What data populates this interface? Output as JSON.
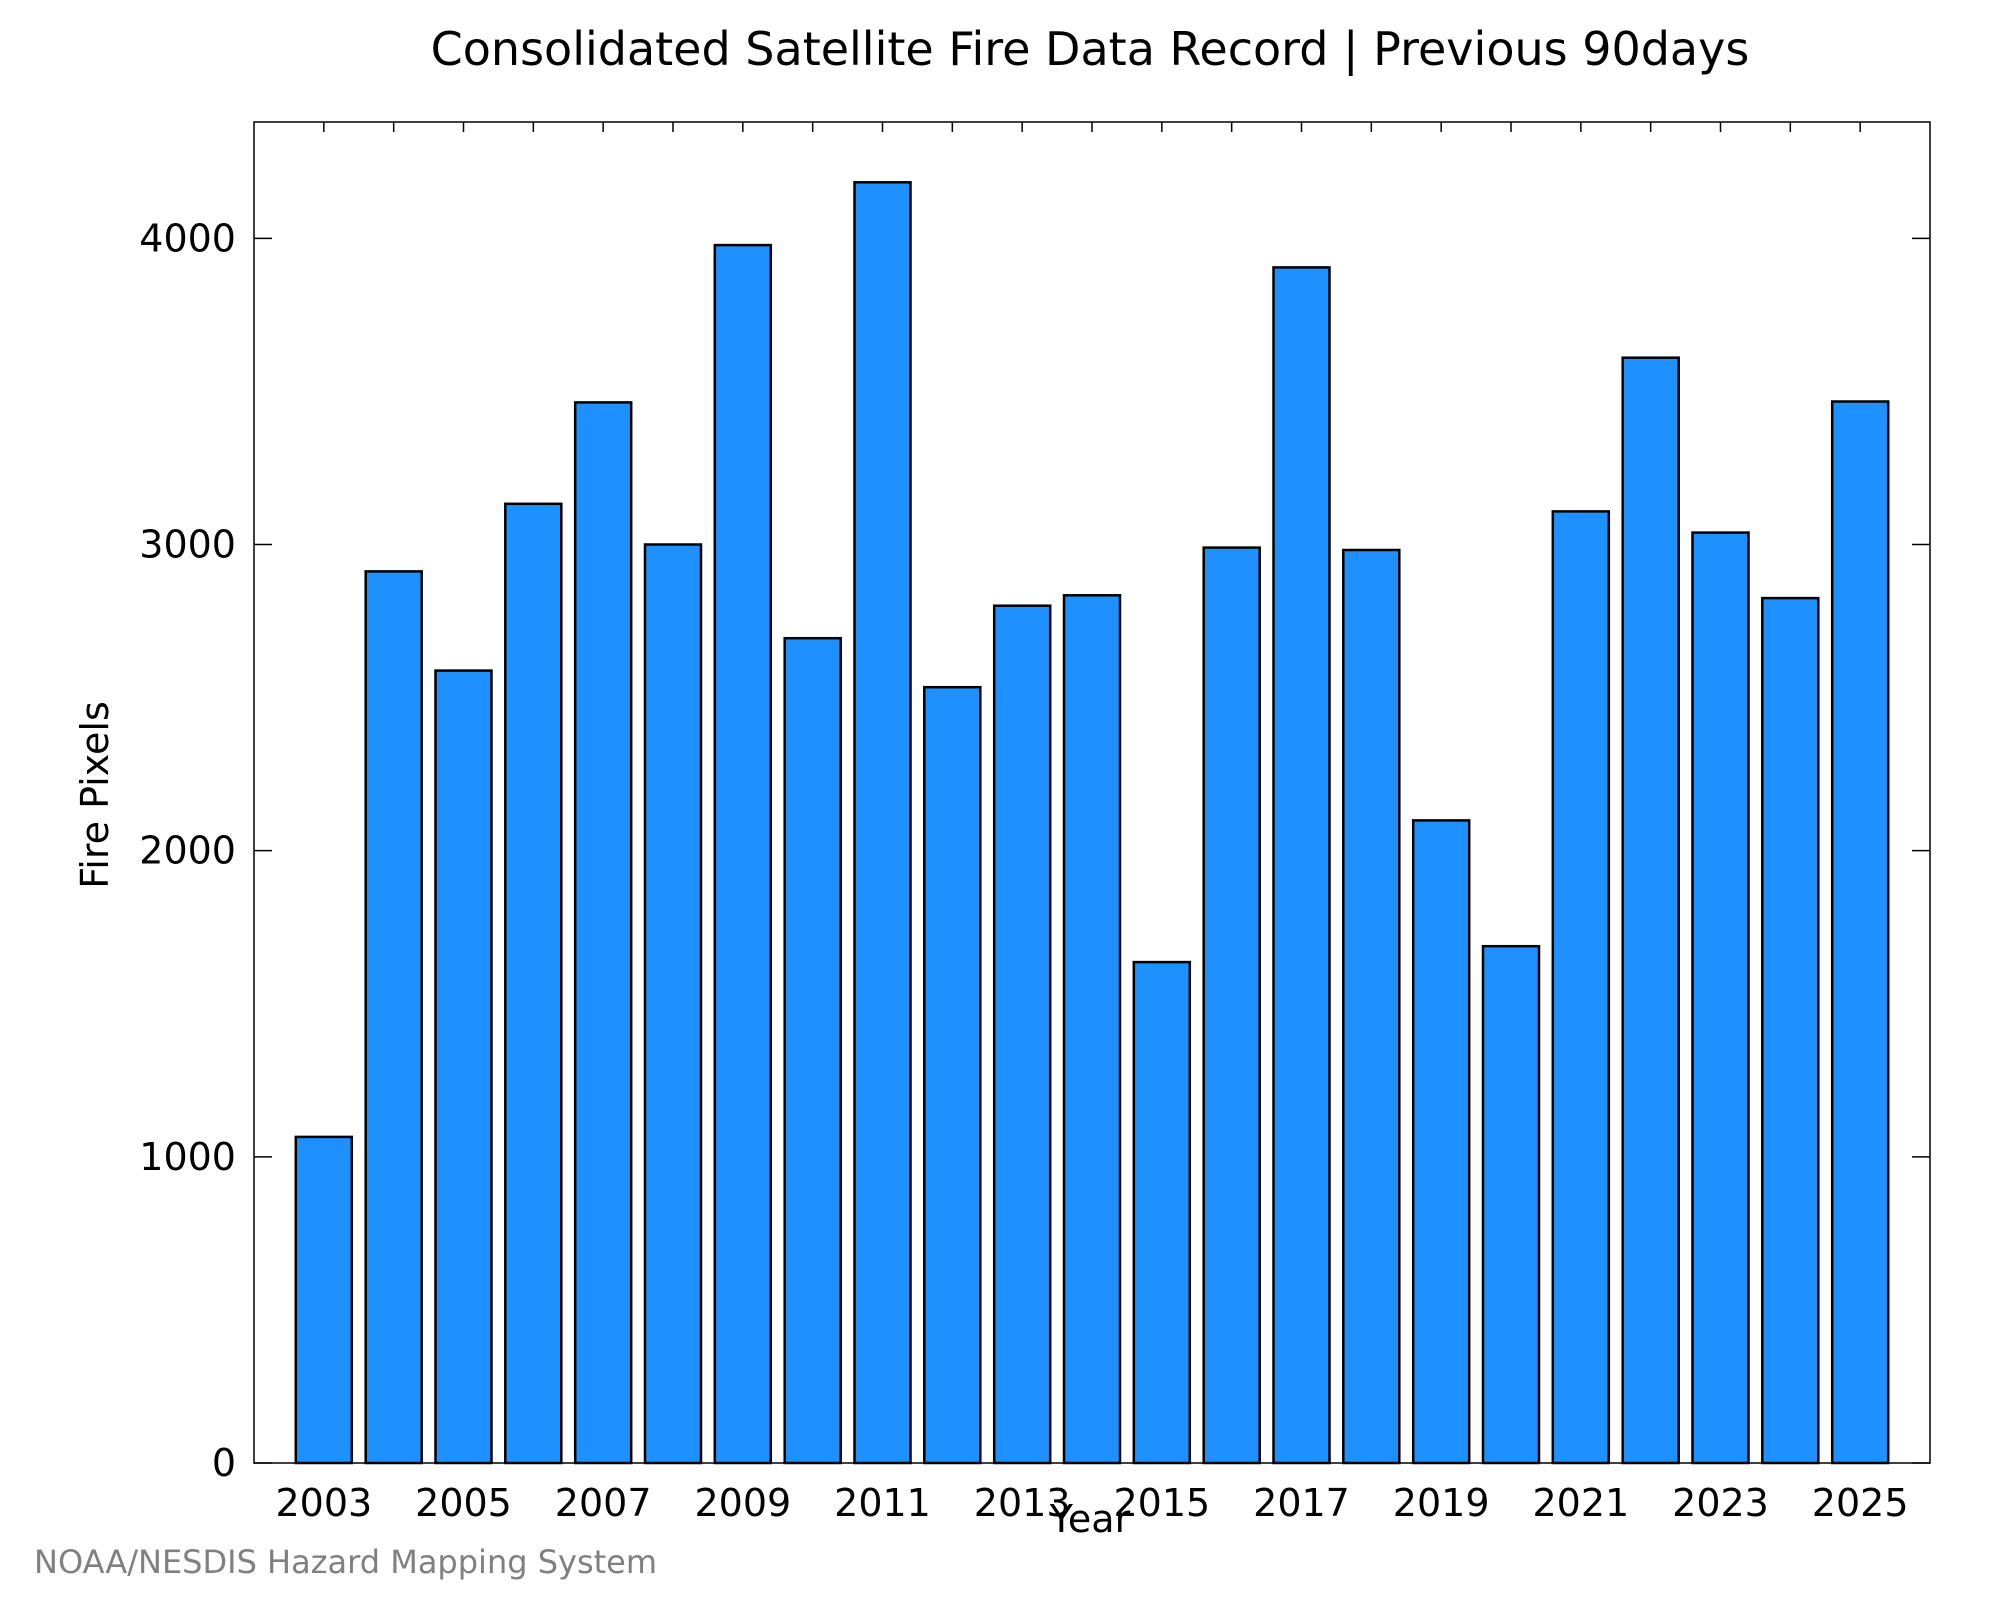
{
  "chart_data": {
    "type": "bar",
    "title": "Consolidated Satellite Fire Data Record | Previous 90days",
    "xlabel": "Year",
    "ylabel": "Fire Pixels",
    "categories": [
      "2003",
      "2004",
      "2005",
      "2006",
      "2007",
      "2008",
      "2009",
      "2010",
      "2011",
      "2012",
      "2013",
      "2014",
      "2015",
      "2016",
      "2017",
      "2018",
      "2019",
      "2020",
      "2021",
      "2022",
      "2023",
      "2024",
      "2025"
    ],
    "values": [
      1065,
      2912,
      2588,
      3133,
      3464,
      3000,
      3978,
      2694,
      4183,
      2534,
      2800,
      2834,
      1636,
      2990,
      3905,
      2982,
      2099,
      1688,
      3108,
      3610,
      3039,
      2825,
      3467
    ],
    "xtick_labels": [
      "2003",
      "2005",
      "2007",
      "2009",
      "2011",
      "2013",
      "2015",
      "2017",
      "2019",
      "2021",
      "2023",
      "2025"
    ],
    "yticks": [
      0,
      1000,
      2000,
      3000,
      4000
    ],
    "ylim": [
      0,
      4380
    ],
    "xlim": [
      2002,
      2026
    ],
    "grid": false,
    "legend": "none",
    "bar_color": "#1e90ff",
    "bar_edge_color": "#000000"
  },
  "footer": {
    "credit": "NOAA/NESDIS Hazard Mapping System"
  }
}
